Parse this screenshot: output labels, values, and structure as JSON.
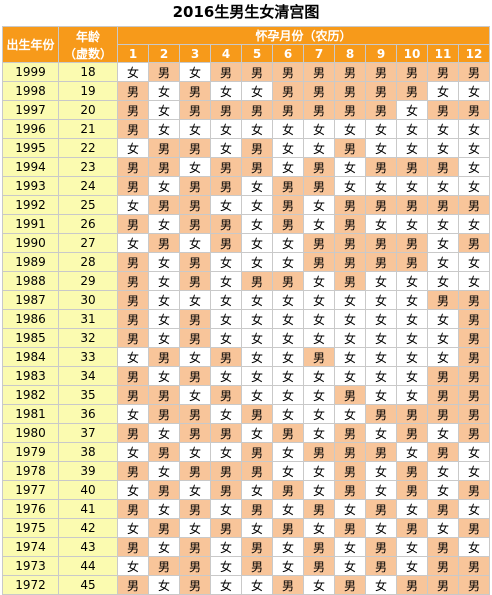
{
  "title": "2016生男生女清宫图",
  "headers": {
    "birth_year": "出生年份",
    "age_line1": "年龄",
    "age_line2": "（虚数）",
    "months_title": "怀孕月份（农历）"
  },
  "colors": {
    "header_bg": "#f79a1a",
    "boy_cell": "#f8c59a",
    "girl_cell": "#ffffff",
    "year_cell": "#fbfbb0"
  },
  "chart_data": {
    "type": "table",
    "columns": [
      "1",
      "2",
      "3",
      "4",
      "5",
      "6",
      "7",
      "8",
      "9",
      "10",
      "11",
      "12"
    ],
    "rows": [
      {
        "year": "1999",
        "age": "18",
        "cells": [
          "女",
          "男",
          "女",
          "男",
          "男",
          "男",
          "男",
          "男",
          "男",
          "男",
          "男",
          "男"
        ]
      },
      {
        "year": "1998",
        "age": "19",
        "cells": [
          "男",
          "女",
          "男",
          "女",
          "女",
          "男",
          "男",
          "男",
          "男",
          "男",
          "女",
          "女"
        ]
      },
      {
        "year": "1997",
        "age": "20",
        "cells": [
          "男",
          "女",
          "男",
          "男",
          "男",
          "男",
          "男",
          "男",
          "男",
          "女",
          "男",
          "男"
        ]
      },
      {
        "year": "1996",
        "age": "21",
        "cells": [
          "男",
          "女",
          "女",
          "女",
          "女",
          "女",
          "女",
          "女",
          "女",
          "女",
          "女",
          "女"
        ]
      },
      {
        "year": "1995",
        "age": "22",
        "cells": [
          "女",
          "男",
          "男",
          "女",
          "男",
          "女",
          "女",
          "男",
          "女",
          "女",
          "女",
          "女"
        ]
      },
      {
        "year": "1994",
        "age": "23",
        "cells": [
          "男",
          "男",
          "女",
          "男",
          "男",
          "女",
          "男",
          "女",
          "男",
          "男",
          "男",
          "女"
        ]
      },
      {
        "year": "1993",
        "age": "24",
        "cells": [
          "男",
          "女",
          "男",
          "男",
          "女",
          "男",
          "男",
          "女",
          "女",
          "女",
          "女",
          "女"
        ]
      },
      {
        "year": "1992",
        "age": "25",
        "cells": [
          "女",
          "男",
          "男",
          "女",
          "女",
          "男",
          "女",
          "男",
          "男",
          "男",
          "男",
          "男"
        ]
      },
      {
        "year": "1991",
        "age": "26",
        "cells": [
          "男",
          "女",
          "男",
          "男",
          "女",
          "男",
          "女",
          "男",
          "女",
          "女",
          "女",
          "女"
        ]
      },
      {
        "year": "1990",
        "age": "27",
        "cells": [
          "女",
          "男",
          "女",
          "男",
          "女",
          "女",
          "男",
          "男",
          "男",
          "男",
          "女",
          "男"
        ]
      },
      {
        "year": "1989",
        "age": "28",
        "cells": [
          "男",
          "女",
          "男",
          "女",
          "女",
          "女",
          "男",
          "男",
          "男",
          "男",
          "女",
          "女"
        ]
      },
      {
        "year": "1988",
        "age": "29",
        "cells": [
          "男",
          "女",
          "男",
          "女",
          "男",
          "男",
          "女",
          "男",
          "女",
          "女",
          "女",
          "女"
        ]
      },
      {
        "year": "1987",
        "age": "30",
        "cells": [
          "男",
          "女",
          "女",
          "女",
          "女",
          "女",
          "女",
          "女",
          "女",
          "女",
          "男",
          "男"
        ]
      },
      {
        "year": "1986",
        "age": "31",
        "cells": [
          "男",
          "女",
          "男",
          "女",
          "女",
          "女",
          "女",
          "女",
          "女",
          "女",
          "女",
          "男"
        ]
      },
      {
        "year": "1985",
        "age": "32",
        "cells": [
          "男",
          "女",
          "男",
          "女",
          "女",
          "女",
          "女",
          "女",
          "女",
          "女",
          "女",
          "男"
        ]
      },
      {
        "year": "1984",
        "age": "33",
        "cells": [
          "女",
          "男",
          "女",
          "男",
          "女",
          "女",
          "男",
          "女",
          "女",
          "女",
          "女",
          "男"
        ]
      },
      {
        "year": "1983",
        "age": "34",
        "cells": [
          "男",
          "女",
          "男",
          "女",
          "女",
          "女",
          "女",
          "女",
          "女",
          "女",
          "男",
          "男"
        ]
      },
      {
        "year": "1982",
        "age": "35",
        "cells": [
          "男",
          "男",
          "女",
          "男",
          "女",
          "女",
          "女",
          "男",
          "女",
          "女",
          "男",
          "男"
        ]
      },
      {
        "year": "1981",
        "age": "36",
        "cells": [
          "女",
          "男",
          "男",
          "女",
          "男",
          "女",
          "女",
          "女",
          "男",
          "男",
          "男",
          "男"
        ]
      },
      {
        "year": "1980",
        "age": "37",
        "cells": [
          "男",
          "女",
          "男",
          "男",
          "女",
          "男",
          "女",
          "男",
          "女",
          "男",
          "女",
          "男"
        ]
      },
      {
        "year": "1979",
        "age": "38",
        "cells": [
          "女",
          "男",
          "女",
          "女",
          "男",
          "女",
          "男",
          "男",
          "男",
          "女",
          "男",
          "女"
        ]
      },
      {
        "year": "1978",
        "age": "39",
        "cells": [
          "男",
          "女",
          "男",
          "男",
          "男",
          "女",
          "女",
          "男",
          "女",
          "男",
          "女",
          "女"
        ]
      },
      {
        "year": "1977",
        "age": "40",
        "cells": [
          "女",
          "男",
          "女",
          "男",
          "女",
          "男",
          "女",
          "男",
          "女",
          "男",
          "女",
          "男"
        ]
      },
      {
        "year": "1976",
        "age": "41",
        "cells": [
          "男",
          "女",
          "男",
          "女",
          "男",
          "女",
          "男",
          "女",
          "男",
          "女",
          "男",
          "女"
        ]
      },
      {
        "year": "1975",
        "age": "42",
        "cells": [
          "女",
          "男",
          "女",
          "男",
          "女",
          "男",
          "女",
          "男",
          "女",
          "男",
          "女",
          "男"
        ]
      },
      {
        "year": "1974",
        "age": "43",
        "cells": [
          "男",
          "女",
          "男",
          "女",
          "男",
          "女",
          "男",
          "女",
          "男",
          "女",
          "男",
          "女"
        ]
      },
      {
        "year": "1973",
        "age": "44",
        "cells": [
          "女",
          "男",
          "男",
          "女",
          "男",
          "女",
          "男",
          "女",
          "男",
          "女",
          "男",
          "男"
        ]
      },
      {
        "year": "1972",
        "age": "45",
        "cells": [
          "男",
          "女",
          "男",
          "女",
          "女",
          "男",
          "女",
          "男",
          "女",
          "男",
          "男",
          "男"
        ]
      }
    ]
  }
}
